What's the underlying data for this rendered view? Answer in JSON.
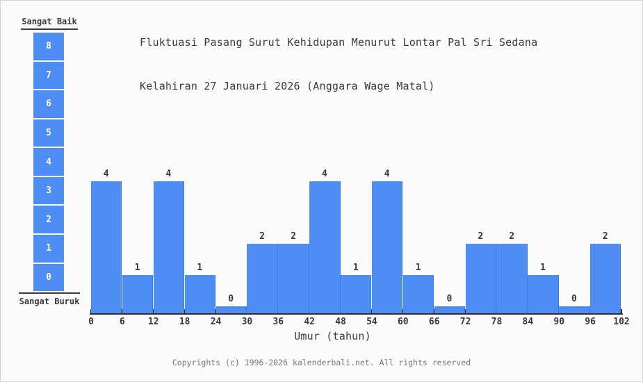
{
  "title": {
    "line1": "Fluktuasi Pasang Surut Kehidupan Menurut Lontar Pal Sri Sedana",
    "line2": "Kelahiran 27 Januari 2026 (Anggara Wage Matal)"
  },
  "scale": {
    "top_label": "Sangat Baik",
    "bottom_label": "Sangat Buruk",
    "levels": [
      8,
      7,
      6,
      5,
      4,
      3,
      2,
      1,
      0
    ]
  },
  "chart_data": {
    "type": "bar",
    "title": "Fluktuasi Pasang Surut Kehidupan Menurut Lontar Pal Sri Sedana Kelahiran 27 Januari 2026 (Anggara Wage Matal)",
    "categories": [
      "0-6",
      "6-12",
      "12-18",
      "18-24",
      "24-30",
      "30-36",
      "36-42",
      "42-48",
      "48-54",
      "54-60",
      "60-66",
      "66-72",
      "72-78",
      "78-84",
      "84-90",
      "90-96",
      "96-102"
    ],
    "values": [
      4,
      1,
      4,
      1,
      0,
      2,
      2,
      4,
      1,
      4,
      1,
      0,
      2,
      2,
      1,
      0,
      2
    ],
    "x_ticks": [
      0,
      6,
      12,
      18,
      24,
      30,
      36,
      42,
      48,
      54,
      60,
      66,
      72,
      78,
      84,
      90,
      96,
      102
    ],
    "xlabel": "Umur (tahun)",
    "xlim": [
      0,
      102
    ],
    "ylim": [
      0,
      8
    ],
    "grid": "off",
    "legend_position": "left",
    "bar_color": "#4e8df3",
    "text_color": "#3a3a3a"
  },
  "footer": {
    "copyright": "Copyrights (c) 1996-2026 kalenderbali.net. All rights reserved"
  }
}
